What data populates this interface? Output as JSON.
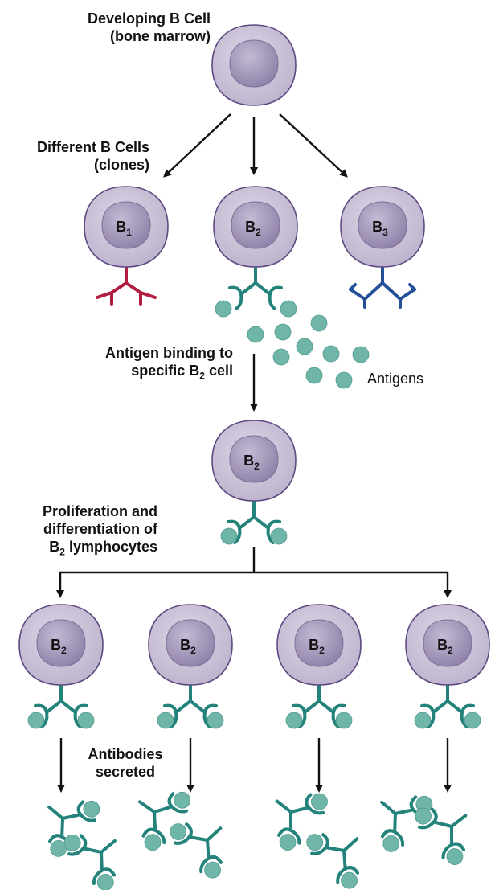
{
  "labels": {
    "developing": [
      "Developing B Cell",
      "(bone marrow)"
    ],
    "clones": [
      "Different B Cells",
      "(clones)"
    ],
    "binding": [
      "Antigen binding to",
      "specific B",
      "2",
      " cell"
    ],
    "antigens": "Antigens",
    "proliferation": [
      "Proliferation and",
      "differentiation of",
      "B",
      "2",
      " lymphocytes"
    ],
    "secreted": [
      "Antibodies",
      "secreted"
    ]
  },
  "cells": {
    "b1": {
      "main": "B",
      "sub": "1"
    },
    "b2": {
      "main": "B",
      "sub": "2"
    },
    "b3": {
      "main": "B",
      "sub": "3"
    }
  },
  "colors": {
    "cell_fill": "#ccc3d8",
    "cell_stroke": "#5d4a82",
    "nucleus_fill": "#a79bbd",
    "antibody_b1": "#b21c3f",
    "antibody_b2": "#23837a",
    "antibody_b3": "#244f99",
    "antigen": "#6fb6a9",
    "arrow": "#111111"
  }
}
